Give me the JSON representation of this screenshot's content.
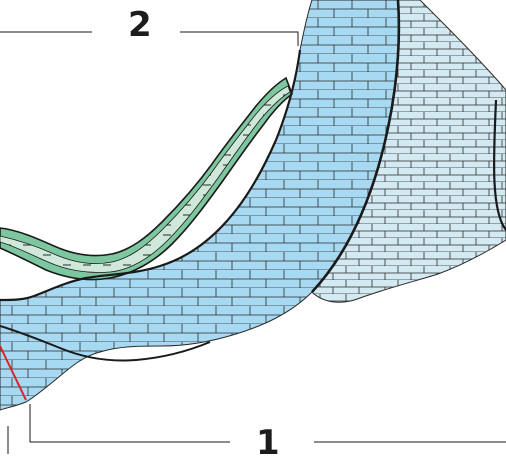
{
  "markers": {
    "top": "2",
    "bottom": "1"
  },
  "colors": {
    "light_layer": "#d4eaf2",
    "blue_layer": "#a7daf2",
    "green_layer": "#7cc7a0",
    "pale_green_layer": "#cfe8da",
    "contact_line": "#1a1a1a",
    "fault_line": "#d8232a"
  }
}
